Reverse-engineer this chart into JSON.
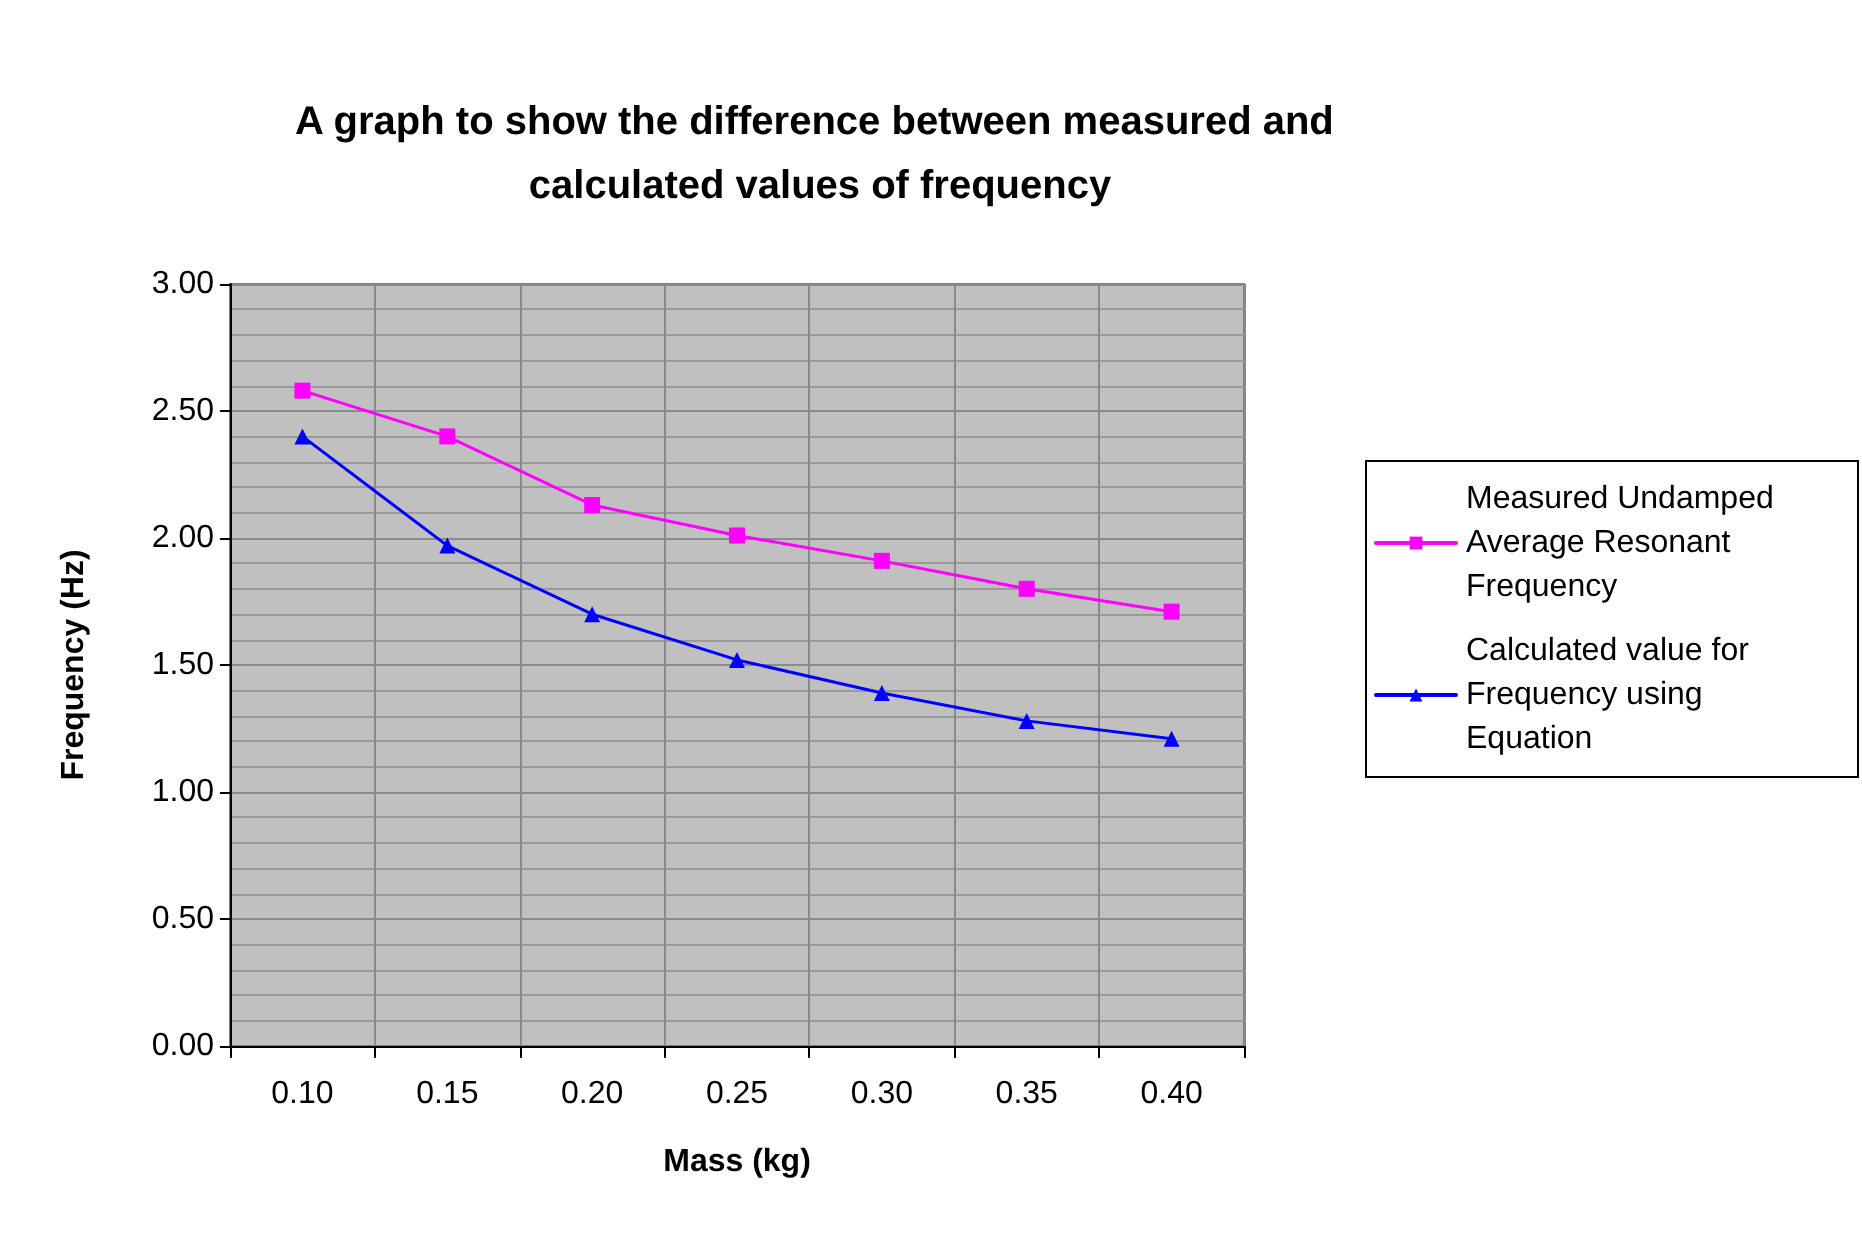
{
  "chart_data": {
    "type": "line",
    "title": "A graph to show the difference between measured and calculated values of frequency",
    "xlabel": "Mass (kg)",
    "ylabel": "Frequency (Hz)",
    "categories": [
      "0.10",
      "0.15",
      "0.20",
      "0.25",
      "0.30",
      "0.35",
      "0.40"
    ],
    "series": [
      {
        "name": "Measured Undamped Average Resonant Frequency",
        "color": "#ff00ff",
        "marker": "square",
        "values": [
          2.58,
          2.4,
          2.13,
          2.01,
          1.91,
          1.8,
          1.71
        ]
      },
      {
        "name": "Calculated value for Frequency using Equation",
        "color": "#0000ff",
        "marker": "triangle",
        "values": [
          2.4,
          1.97,
          1.7,
          1.52,
          1.39,
          1.28,
          1.21
        ]
      }
    ],
    "ylim": [
      0,
      3
    ],
    "yticks": [
      {
        "value": 0,
        "label": "0.00"
      },
      {
        "value": 0.5,
        "label": "0.50"
      },
      {
        "value": 1,
        "label": "1.00"
      },
      {
        "value": 1.5,
        "label": "1.50"
      },
      {
        "value": 2,
        "label": "2.00"
      },
      {
        "value": 2.5,
        "label": "2.50"
      },
      {
        "value": 3,
        "label": "3.00"
      }
    ],
    "grid": true,
    "legend": "right",
    "line_style": "solid"
  }
}
